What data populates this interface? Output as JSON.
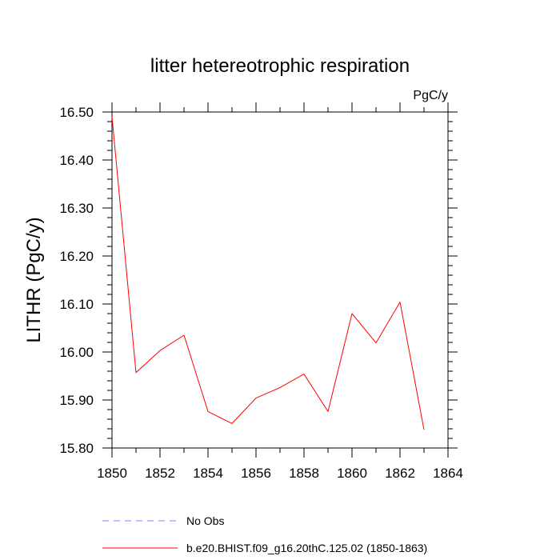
{
  "chart_data": {
    "type": "line",
    "title": "litter hetereotrophic respiration",
    "units_label": "PgC/y",
    "ylabel": "LITHR  (PgC/y)",
    "xlabel": "",
    "xlim": [
      1850,
      1864
    ],
    "ylim": [
      15.8,
      16.5
    ],
    "x_ticks": [
      1850,
      1852,
      1854,
      1856,
      1858,
      1860,
      1862,
      1864
    ],
    "x_tick_labels": [
      "1850",
      "1852",
      "1854",
      "1856",
      "1858",
      "1860",
      "1862",
      "1864"
    ],
    "y_ticks": [
      15.8,
      15.9,
      16.0,
      16.1,
      16.2,
      16.3,
      16.4,
      16.5
    ],
    "y_tick_labels": [
      "15.80",
      "15.90",
      "16.00",
      "16.10",
      "16.20",
      "16.30",
      "16.40",
      "16.50"
    ],
    "grid": false,
    "series": [
      {
        "name": "b.e20.BHIST.f09_g16.20thC.125.02 (1850-1863)",
        "color": "#ff0000",
        "x": [
          1850,
          1851,
          1852,
          1853,
          1854,
          1855,
          1856,
          1857,
          1858,
          1859,
          1860,
          1861,
          1862,
          1863
        ],
        "y": [
          16.49,
          15.957,
          16.003,
          16.035,
          15.876,
          15.851,
          15.904,
          15.926,
          15.954,
          15.876,
          16.08,
          16.019,
          16.104,
          15.838
        ]
      }
    ],
    "legend": {
      "placement": "bottom",
      "entries": [
        {
          "label": "No Obs",
          "color": "#8080ff",
          "style": "dashed"
        },
        {
          "label": "b.e20.BHIST.f09_g16.20thC.125.02 (1850-1863)",
          "color": "#ff0000",
          "style": "solid"
        }
      ]
    }
  }
}
